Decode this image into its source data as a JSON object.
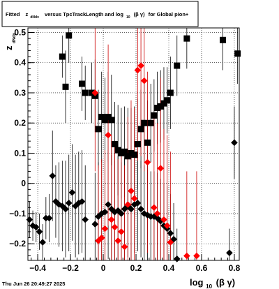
{
  "title_box": {
    "prefix": "Fitted",
    "z_symbol": "z",
    "z_subscript": "dNdx",
    "middle": "versus TpcTrackLength and log",
    "log_subscript": "10",
    "beta_gamma": "(β γ)",
    "suffix": "for Global pion+"
  },
  "footer": {
    "timestamp": "Thu Jun 26 20:49:27 2025"
  },
  "chart_data": {
    "type": "scatter",
    "xlabel": "log10 (β γ)",
    "xlabel_parts": {
      "main": "log",
      "sub": "10",
      "rest": "(β γ)"
    },
    "ylabel": "z dNdx",
    "ylabel_parts": {
      "main": "z",
      "sub": "dNdx"
    },
    "xlim": [
      -0.46,
      0.83
    ],
    "ylim": [
      -0.255,
      0.515
    ],
    "x_ticks": [
      {
        "v": -0.4,
        "label": "−0.4"
      },
      {
        "v": -0.2,
        "label": "−0.2"
      },
      {
        "v": 0.0,
        "label": "0"
      },
      {
        "v": 0.2,
        "label": "0.2"
      },
      {
        "v": 0.4,
        "label": "0.4"
      },
      {
        "v": 0.6,
        "label": "0.6"
      },
      {
        "v": 0.8,
        "label": "0.8"
      }
    ],
    "y_ticks": [
      {
        "v": -0.2,
        "label": "−0.2"
      },
      {
        "v": -0.1,
        "label": "−0.1"
      },
      {
        "v": 0.0,
        "label": "0"
      },
      {
        "v": 0.1,
        "label": "0.1"
      },
      {
        "v": 0.2,
        "label": "0.2"
      },
      {
        "v": 0.3,
        "label": "0.3"
      },
      {
        "v": 0.4,
        "label": "0.4"
      },
      {
        "v": 0.5,
        "label": "0.5"
      }
    ],
    "grid": true,
    "colors": {
      "black": "#000000",
      "red": "#ff0000",
      "errbar_red": "#cc0000",
      "grid": "#000000"
    },
    "series": [
      {
        "marker": "square",
        "color": "#000000",
        "points": [
          {
            "x": -0.25,
            "y": 0.42,
            "err": 0.07
          },
          {
            "x": -0.23,
            "y": 0.32,
            "err": 0.12
          },
          {
            "x": -0.21,
            "y": 0.49,
            "err": 0.09
          },
          {
            "x": -0.13,
            "y": 0.33,
            "err": 0.09
          },
          {
            "x": -0.11,
            "y": 0.3,
            "err": 0.09
          },
          {
            "x": -0.07,
            "y": 0.3,
            "err": 0.1
          },
          {
            "x": -0.05,
            "y": 0.29,
            "err": 0.12
          },
          {
            "x": -0.03,
            "y": 0.18,
            "err": 0.13
          },
          {
            "x": -0.01,
            "y": 0.22,
            "err": 0.15
          },
          {
            "x": 0.01,
            "y": 0.21,
            "err": 0.14
          },
          {
            "x": 0.03,
            "y": 0.22,
            "err": 0.15
          },
          {
            "x": 0.05,
            "y": 0.21,
            "err": 0.15
          },
          {
            "x": 0.07,
            "y": 0.13,
            "err": 0.14
          },
          {
            "x": 0.09,
            "y": 0.11,
            "err": 0.15
          },
          {
            "x": 0.11,
            "y": 0.1,
            "err": 0.15
          },
          {
            "x": 0.13,
            "y": 0.105,
            "err": 0.15
          },
          {
            "x": 0.15,
            "y": 0.09,
            "err": 0.16
          },
          {
            "x": 0.17,
            "y": 0.1,
            "err": 0.15
          },
          {
            "x": 0.19,
            "y": 0.095,
            "err": 0.16
          },
          {
            "x": 0.21,
            "y": 0.13,
            "err": 0.15
          },
          {
            "x": 0.23,
            "y": 0.18,
            "err": 0.13
          },
          {
            "x": 0.25,
            "y": 0.2,
            "err": 0.13
          },
          {
            "x": 0.27,
            "y": 0.135,
            "err": 0.14
          },
          {
            "x": 0.29,
            "y": 0.2,
            "err": 0.13
          },
          {
            "x": 0.31,
            "y": 0.225,
            "err": 0.12
          },
          {
            "x": 0.33,
            "y": 0.25,
            "err": 0.12
          },
          {
            "x": 0.35,
            "y": 0.255,
            "err": 0.12
          },
          {
            "x": 0.37,
            "y": 0.265,
            "err": 0.12
          },
          {
            "x": 0.39,
            "y": 0.275,
            "err": 0.11
          },
          {
            "x": 0.41,
            "y": 0.3,
            "err": 0.12
          },
          {
            "x": 0.45,
            "y": 0.39,
            "err": 0.1
          },
          {
            "x": 0.51,
            "y": 0.48,
            "err": 0.1
          },
          {
            "x": 0.73,
            "y": 0.475,
            "err": 0.1
          },
          {
            "x": 0.82,
            "y": 0.43,
            "err": 0.1
          }
        ]
      },
      {
        "marker": "diamond",
        "color": "#000000",
        "points": [
          {
            "x": -0.45,
            "y": -0.12,
            "err": 0.06
          },
          {
            "x": -0.43,
            "y": -0.14,
            "err": 0.05
          },
          {
            "x": -0.41,
            "y": -0.145,
            "err": 0.05
          },
          {
            "x": -0.39,
            "y": -0.16,
            "err": 0.06
          },
          {
            "x": -0.37,
            "y": -0.195,
            "err": 0.06
          },
          {
            "x": -0.35,
            "y": -0.115,
            "err": 0.07
          },
          {
            "x": -0.33,
            "y": -0.115,
            "err": 0.08
          },
          {
            "x": -0.31,
            "y": 0.025,
            "err": 0.15
          },
          {
            "x": -0.29,
            "y": -0.06,
            "err": 0.12
          },
          {
            "x": -0.27,
            "y": -0.07,
            "err": 0.14
          },
          {
            "x": -0.25,
            "y": -0.075,
            "err": 0.15
          },
          {
            "x": -0.23,
            "y": -0.085,
            "err": 0.16
          },
          {
            "x": -0.21,
            "y": -0.065,
            "err": 0.16
          },
          {
            "x": -0.19,
            "y": -0.03,
            "err": 0.16
          },
          {
            "x": -0.17,
            "y": -0.075,
            "err": 0.17
          },
          {
            "x": -0.15,
            "y": -0.065,
            "err": 0.17
          },
          {
            "x": -0.13,
            "y": -0.06,
            "err": 0.17
          },
          {
            "x": -0.11,
            "y": -0.12,
            "err": 0.18
          },
          {
            "x": -0.05,
            "y": -0.135,
            "err": 0.17
          },
          {
            "x": -0.03,
            "y": -0.11,
            "err": 0.18
          },
          {
            "x": -0.01,
            "y": -0.1,
            "err": 0.18
          },
          {
            "x": 0.01,
            "y": -0.095,
            "err": 0.17
          },
          {
            "x": 0.03,
            "y": -0.07,
            "err": 0.18
          },
          {
            "x": 0.05,
            "y": -0.085,
            "err": 0.18
          },
          {
            "x": 0.07,
            "y": -0.095,
            "err": 0.17
          },
          {
            "x": 0.09,
            "y": -0.09,
            "err": 0.18
          },
          {
            "x": 0.11,
            "y": -0.1,
            "err": 0.17
          },
          {
            "x": 0.13,
            "y": -0.085,
            "err": 0.17
          },
          {
            "x": 0.15,
            "y": -0.075,
            "err": 0.17
          },
          {
            "x": 0.17,
            "y": -0.085,
            "err": 0.17
          },
          {
            "x": 0.19,
            "y": -0.07,
            "err": 0.16
          },
          {
            "x": 0.21,
            "y": -0.065,
            "err": 0.16
          },
          {
            "x": 0.23,
            "y": -0.085,
            "err": 0.16
          },
          {
            "x": 0.25,
            "y": -0.1,
            "err": 0.16
          },
          {
            "x": 0.27,
            "y": -0.105,
            "err": 0.15
          },
          {
            "x": 0.29,
            "y": -0.11,
            "err": 0.15
          },
          {
            "x": 0.31,
            "y": -0.11,
            "err": 0.15
          },
          {
            "x": 0.33,
            "y": -0.115,
            "err": 0.15
          },
          {
            "x": 0.35,
            "y": -0.125,
            "err": 0.14
          },
          {
            "x": 0.37,
            "y": -0.14,
            "err": 0.14
          },
          {
            "x": 0.39,
            "y": -0.15,
            "err": 0.14
          },
          {
            "x": 0.41,
            "y": -0.165,
            "err": 0.13
          },
          {
            "x": 0.43,
            "y": -0.185,
            "err": 0.12
          },
          {
            "x": 0.45,
            "y": -0.25,
            "err": 0.1
          },
          {
            "x": 0.77,
            "y": -0.23,
            "err": 0.08
          },
          {
            "x": 0.8,
            "y": 0.135,
            "err": 0.12
          }
        ]
      },
      {
        "marker": "diamond",
        "color": "#ff0000",
        "points": [
          {
            "x": -0.05,
            "y": 0.3,
            "err": 0.26
          },
          {
            "x": -0.03,
            "y": -0.19,
            "err": 0.25
          },
          {
            "x": -0.01,
            "y": -0.18,
            "err": 0.26
          },
          {
            "x": 0.01,
            "y": -0.15,
            "err": 0.26
          },
          {
            "x": 0.03,
            "y": 0.16,
            "err": 0.3
          },
          {
            "x": 0.05,
            "y": -0.12,
            "err": 0.28
          },
          {
            "x": 0.07,
            "y": -0.145,
            "err": 0.28
          },
          {
            "x": 0.09,
            "y": -0.19,
            "err": 0.27
          },
          {
            "x": 0.11,
            "y": -0.16,
            "err": 0.27
          },
          {
            "x": 0.13,
            "y": -0.21,
            "err": 0.27
          },
          {
            "x": 0.15,
            "y": -0.07,
            "err": 0.29
          },
          {
            "x": 0.17,
            "y": -0.025,
            "err": 0.3
          },
          {
            "x": 0.19,
            "y": -0.05,
            "err": 0.3
          },
          {
            "x": 0.21,
            "y": 0.375,
            "err": 0.3
          },
          {
            "x": 0.23,
            "y": 0.39,
            "err": 0.3
          },
          {
            "x": 0.25,
            "y": 0.34,
            "err": 0.3
          },
          {
            "x": 0.27,
            "y": 0.07,
            "err": 0.3
          },
          {
            "x": 0.31,
            "y": -0.08,
            "err": 0.3
          },
          {
            "x": 0.33,
            "y": -0.1,
            "err": 0.3
          },
          {
            "x": 0.35,
            "y": 0.05,
            "err": 0.3
          },
          {
            "x": 0.37,
            "y": -0.12,
            "err": 0.3
          },
          {
            "x": 0.39,
            "y": -0.14,
            "err": 0.3
          },
          {
            "x": 0.41,
            "y": -0.195,
            "err": 0.3
          },
          {
            "x": 0.51,
            "y": -0.24,
            "err": 0.28
          },
          {
            "x": 0.57,
            "y": -0.24,
            "err": 0.28
          }
        ]
      }
    ]
  }
}
